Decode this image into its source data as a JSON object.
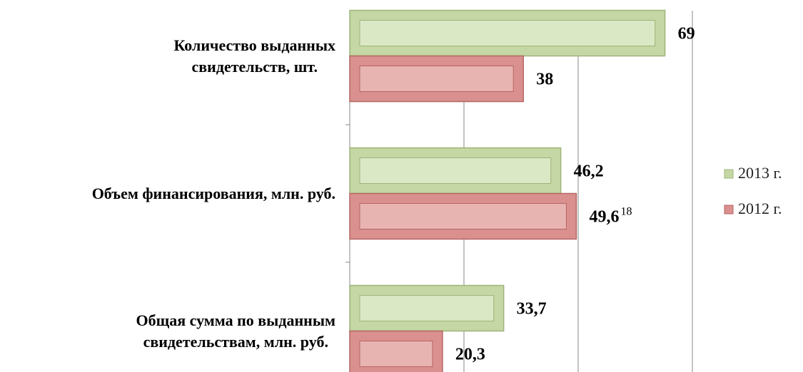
{
  "chart_data": {
    "type": "bar",
    "orientation": "horizontal",
    "categories": [
      "Количество выданных\nсвидетельств, шт.",
      "Объем финансирования, млн. руб.",
      "Общая сумма по выданным\nсвидетельствам, млн. руб."
    ],
    "series": [
      {
        "name": "2013 г.",
        "color": "#c4d7a4",
        "values": [
          69,
          46.2,
          33.7
        ],
        "value_labels": [
          "69",
          "46,2",
          "33,7"
        ]
      },
      {
        "name": "2012 г.",
        "color": "#d9908e",
        "values": [
          38,
          49.6,
          20.3
        ],
        "value_labels": [
          "38",
          "49,6",
          "20,3"
        ]
      }
    ],
    "footnote_mark": "18",
    "xlim": [
      0,
      75
    ],
    "xticks": [
      0,
      25,
      50,
      75
    ],
    "grid": true,
    "legend": "right"
  }
}
